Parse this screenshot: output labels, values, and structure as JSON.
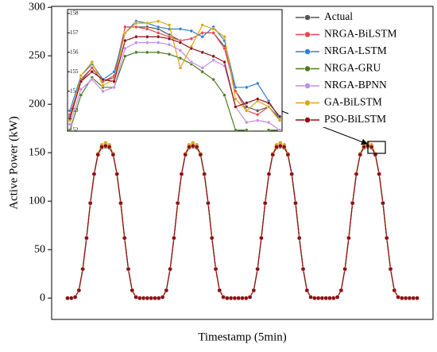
{
  "chart_data": [
    {
      "type": "line",
      "ylabel": "Active Power (kW)",
      "xlabel": "Timestamp (5min)",
      "ylim": [
        -22,
        301
      ],
      "yticks": [
        0,
        50,
        100,
        150,
        200,
        250,
        300
      ],
      "legend": "upper right",
      "series": [
        {
          "name": "Actual",
          "color": "#555555",
          "values": [
            0,
            0,
            1,
            8,
            30,
            62,
            98,
            128,
            148,
            156,
            158,
            156,
            148,
            128,
            98,
            62,
            30,
            8,
            1,
            0,
            0,
            0,
            0,
            0,
            0,
            1,
            8,
            30,
            62,
            98,
            128,
            148,
            156,
            158,
            156,
            148,
            128,
            98,
            62,
            30,
            8,
            1,
            0,
            0,
            0,
            0,
            0,
            0,
            1,
            8,
            30,
            62,
            98,
            128,
            148,
            156,
            158,
            156,
            148,
            128,
            98,
            62,
            30,
            8,
            1,
            0,
            0,
            0,
            0,
            0,
            0,
            1,
            8,
            30,
            62,
            98,
            128,
            148,
            156,
            158,
            156,
            148,
            128,
            98,
            62,
            30,
            8,
            1,
            0,
            0,
            0,
            0,
            0
          ]
        },
        {
          "name": "NRGA-BiLSTM",
          "color": "#e8474f",
          "values": [
            0,
            0,
            1,
            8,
            30,
            62,
            98,
            128,
            148,
            156,
            158,
            156,
            148,
            128,
            98,
            62,
            30,
            8,
            1,
            0,
            0,
            0,
            0,
            0,
            0,
            1,
            8,
            30,
            62,
            98,
            128,
            148,
            156,
            158,
            156,
            148,
            128,
            98,
            62,
            30,
            8,
            1,
            0,
            0,
            0,
            0,
            0,
            0,
            1,
            8,
            30,
            62,
            98,
            128,
            148,
            156,
            158,
            156,
            148,
            128,
            98,
            62,
            30,
            8,
            1,
            0,
            0,
            0,
            0,
            0,
            0,
            1,
            8,
            30,
            62,
            98,
            128,
            148,
            156,
            158,
            156,
            148,
            128,
            98,
            62,
            30,
            8,
            1,
            0,
            0,
            0,
            0,
            0
          ]
        },
        {
          "name": "NRGA-LSTM",
          "color": "#2f7fd0",
          "values": [
            0,
            0,
            1,
            8,
            30,
            62,
            98,
            128,
            148,
            156,
            158,
            156,
            148,
            128,
            98,
            62,
            30,
            8,
            1,
            0,
            0,
            0,
            0,
            0,
            0,
            1,
            8,
            30,
            62,
            98,
            128,
            148,
            156,
            158,
            156,
            148,
            128,
            98,
            62,
            30,
            8,
            1,
            0,
            0,
            0,
            0,
            0,
            0,
            1,
            8,
            30,
            62,
            98,
            128,
            148,
            156,
            158,
            156,
            148,
            128,
            98,
            62,
            30,
            8,
            1,
            0,
            0,
            0,
            0,
            0,
            0,
            1,
            8,
            30,
            62,
            98,
            128,
            148,
            156,
            158,
            156,
            148,
            128,
            98,
            62,
            30,
            8,
            1,
            0,
            0,
            0,
            0,
            0
          ]
        },
        {
          "name": "NRGA-GRU",
          "color": "#4d7a1e",
          "values": [
            0,
            0,
            1,
            8,
            30,
            62,
            98,
            128,
            148,
            155,
            156,
            155,
            148,
            128,
            98,
            62,
            30,
            8,
            1,
            0,
            0,
            0,
            0,
            0,
            0,
            1,
            8,
            30,
            62,
            98,
            128,
            148,
            155,
            156,
            155,
            148,
            128,
            98,
            62,
            30,
            8,
            1,
            0,
            0,
            0,
            0,
            0,
            0,
            1,
            8,
            30,
            62,
            98,
            128,
            148,
            155,
            156,
            155,
            148,
            128,
            98,
            62,
            30,
            8,
            1,
            0,
            0,
            0,
            0,
            0,
            0,
            1,
            8,
            30,
            62,
            98,
            128,
            148,
            155,
            156,
            155,
            148,
            128,
            98,
            62,
            30,
            8,
            1,
            0,
            0,
            0,
            0,
            0
          ]
        },
        {
          "name": "NRGA-BPNN",
          "color": "#c58ae8",
          "values": [
            0,
            0,
            1,
            8,
            30,
            62,
            98,
            128,
            148,
            156,
            157,
            156,
            148,
            128,
            98,
            62,
            30,
            8,
            1,
            0,
            0,
            0,
            0,
            0,
            0,
            1,
            8,
            30,
            62,
            98,
            128,
            148,
            156,
            157,
            156,
            148,
            128,
            98,
            62,
            30,
            8,
            1,
            0,
            0,
            0,
            0,
            0,
            0,
            1,
            8,
            30,
            62,
            98,
            128,
            148,
            156,
            157,
            156,
            148,
            128,
            98,
            62,
            30,
            8,
            1,
            0,
            0,
            0,
            0,
            0,
            0,
            1,
            8,
            30,
            62,
            98,
            128,
            148,
            156,
            157,
            156,
            148,
            128,
            98,
            62,
            30,
            8,
            1,
            0,
            0,
            0,
            0,
            0
          ]
        },
        {
          "name": "GA-BiLSTM",
          "color": "#d9a514",
          "values": [
            0,
            0,
            1,
            8,
            30,
            62,
            98,
            128,
            149,
            158,
            160,
            158,
            149,
            128,
            98,
            62,
            30,
            8,
            1,
            0,
            0,
            0,
            0,
            0,
            0,
            1,
            8,
            30,
            62,
            98,
            128,
            149,
            158,
            160,
            158,
            149,
            128,
            98,
            62,
            30,
            8,
            1,
            0,
            0,
            0,
            0,
            0,
            0,
            1,
            8,
            30,
            62,
            98,
            128,
            149,
            158,
            160,
            158,
            149,
            128,
            98,
            62,
            30,
            8,
            1,
            0,
            0,
            0,
            0,
            0,
            0,
            1,
            8,
            30,
            62,
            98,
            128,
            149,
            158,
            160,
            158,
            149,
            128,
            98,
            62,
            30,
            8,
            1,
            0,
            0,
            0,
            0,
            0
          ]
        },
        {
          "name": "PSO-BiLSTM",
          "color": "#8b1014",
          "values": [
            0,
            0,
            1,
            8,
            30,
            62,
            98,
            128,
            148,
            156,
            157,
            156,
            148,
            128,
            98,
            62,
            30,
            8,
            1,
            0,
            0,
            0,
            0,
            0,
            0,
            1,
            8,
            30,
            62,
            98,
            128,
            148,
            156,
            157,
            156,
            148,
            128,
            98,
            62,
            30,
            8,
            1,
            0,
            0,
            0,
            0,
            0,
            0,
            1,
            8,
            30,
            62,
            98,
            128,
            148,
            156,
            157,
            156,
            148,
            128,
            98,
            62,
            30,
            8,
            1,
            0,
            0,
            0,
            0,
            0,
            0,
            1,
            8,
            30,
            62,
            98,
            128,
            148,
            156,
            157,
            156,
            148,
            128,
            98,
            62,
            30,
            8,
            1,
            0,
            0,
            0,
            0,
            0
          ]
        }
      ]
    },
    {
      "type": "line",
      "ylim": [
        151.95,
        158.2
      ],
      "yticks": [
        152,
        153,
        154,
        155,
        156,
        157,
        158
      ],
      "series": [
        {
          "color": "#555555",
          "values": [
            152.7,
            154.6,
            155.2,
            154.5,
            154.7,
            157.3,
            157.3,
            157.3,
            157.2,
            156.9,
            156.6,
            156.7,
            157,
            157,
            156.3,
            154,
            153.2,
            153,
            153.2,
            152.6
          ]
        },
        {
          "color": "#e8474f",
          "values": [
            152.8,
            154.5,
            155.2,
            154.5,
            154.8,
            157.3,
            157.3,
            157.2,
            157,
            156.8,
            156.6,
            156.7,
            157,
            157,
            156.2,
            154,
            153,
            152.8,
            153.2,
            152.5
          ]
        },
        {
          "color": "#2f7fd0",
          "values": [
            153,
            154.8,
            155.4,
            154.6,
            155,
            157,
            157.6,
            157.5,
            157.3,
            157.2,
            157.2,
            157.1,
            156.8,
            157.3,
            156.6,
            154.2,
            154.2,
            154.4,
            153.5,
            152.6
          ]
        },
        {
          "color": "#4d7a1e",
          "values": [
            152,
            153.8,
            154.7,
            154.2,
            154.2,
            155.8,
            156,
            156,
            156,
            155.9,
            155.7,
            155.4,
            155,
            154.6,
            153.8,
            152,
            152,
            151.8,
            152,
            152
          ]
        },
        {
          "color": "#c58ae8",
          "values": [
            152.3,
            154.1,
            154.6,
            154,
            154.2,
            156.2,
            156.5,
            156.5,
            156.5,
            156.4,
            156.1,
            155.5,
            155.2,
            155.6,
            155.3,
            153.2,
            152.4,
            152.5,
            152.4,
            152
          ]
        },
        {
          "color": "#d9a514",
          "values": [
            152.5,
            154.8,
            155.5,
            154.3,
            154.6,
            157,
            157.5,
            157.5,
            157.6,
            157.4,
            155.2,
            156.3,
            157.4,
            157.2,
            156.8,
            153.6,
            153,
            153.5,
            153.2,
            152.5
          ]
        },
        {
          "color": "#8b1014",
          "values": [
            152.6,
            154.5,
            155,
            154.6,
            154.5,
            156.6,
            156.8,
            156.8,
            156.8,
            156.7,
            156.5,
            156.2,
            156,
            155.8,
            155.5,
            153.2,
            153.4,
            153.6,
            153.4,
            152.7
          ]
        }
      ]
    }
  ]
}
